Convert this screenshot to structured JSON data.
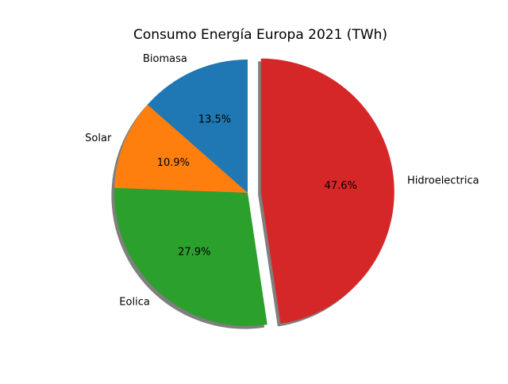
{
  "chart_data": {
    "type": "pie",
    "title": "Consumo Energía Europa 2021 (TWh)",
    "categories": [
      "Biomasa",
      "Solar",
      "Eolica",
      "Hidroelectrica"
    ],
    "values": [
      13.5,
      10.9,
      27.9,
      47.6
    ],
    "percent_labels": [
      "13.5%",
      "10.9%",
      "27.9%",
      "47.6%"
    ],
    "colors": [
      "#1f77b4",
      "#ff7f0e",
      "#2ca02c",
      "#d62728"
    ],
    "explode": [
      0,
      0,
      0,
      0.1
    ],
    "shadow": true,
    "start_angle_deg": 90,
    "counterclock": true,
    "legend": "none"
  }
}
